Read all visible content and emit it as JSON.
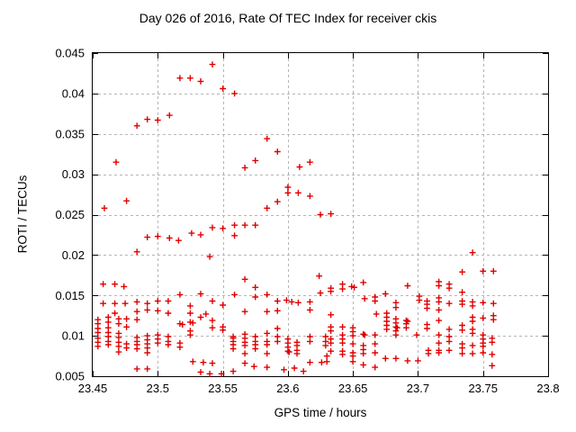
{
  "chart_data": {
    "type": "scatter",
    "title": "Day 026 of 2016, Rate Of TEC Index for receiver ckis",
    "xlabel": "GPS time / hours",
    "ylabel": "ROTI / TECUs",
    "xlim": [
      23.45,
      23.8
    ],
    "ylim": [
      0.005,
      0.045
    ],
    "xticks": [
      23.45,
      23.5,
      23.55,
      23.6,
      23.65,
      23.7,
      23.75,
      23.8
    ],
    "xtick_labels": [
      "23.45",
      "23.5",
      "23.55",
      "23.6",
      "23.65",
      "23.7",
      "23.75",
      "23.8"
    ],
    "yticks": [
      0.005,
      0.01,
      0.015,
      0.02,
      0.025,
      0.03,
      0.035,
      0.04,
      0.045
    ],
    "ytick_labels": [
      "0.005",
      "0.01",
      "0.015",
      "0.02",
      "0.025",
      "0.03",
      "0.035",
      "0.04",
      "0.045"
    ],
    "grid": true,
    "legend": "none",
    "marker": "plus",
    "marker_color": "#e00000",
    "grid_color": "#b5b5b5",
    "axis_color": "#000000",
    "points": [
      [
        23.459,
        0.0258
      ],
      [
        23.468,
        0.0315
      ],
      [
        23.476,
        0.0267
      ],
      [
        23.484,
        0.036
      ],
      [
        23.492,
        0.0368
      ],
      [
        23.5,
        0.0367
      ],
      [
        23.509,
        0.0373
      ],
      [
        23.517,
        0.0419
      ],
      [
        23.525,
        0.0419
      ],
      [
        23.533,
        0.0415
      ],
      [
        23.542,
        0.0436
      ],
      [
        23.55,
        0.0406
      ],
      [
        23.559,
        0.04
      ],
      [
        23.567,
        0.0308
      ],
      [
        23.575,
        0.0317
      ],
      [
        23.584,
        0.0344
      ],
      [
        23.592,
        0.0328
      ],
      [
        23.609,
        0.0309
      ],
      [
        23.617,
        0.0315
      ],
      [
        23.484,
        0.0204
      ],
      [
        23.492,
        0.0222
      ],
      [
        23.5,
        0.0223
      ],
      [
        23.509,
        0.0221
      ],
      [
        23.516,
        0.0218
      ],
      [
        23.526,
        0.0227
      ],
      [
        23.533,
        0.0225
      ],
      [
        23.54,
        0.0198
      ],
      [
        23.542,
        0.0234
      ],
      [
        23.55,
        0.0233
      ],
      [
        23.559,
        0.0237
      ],
      [
        23.567,
        0.0237
      ],
      [
        23.575,
        0.0237
      ],
      [
        23.559,
        0.0224
      ],
      [
        23.584,
        0.0258
      ],
      [
        23.592,
        0.0266
      ],
      [
        23.6,
        0.0284
      ],
      [
        23.6,
        0.0277
      ],
      [
        23.608,
        0.0277
      ],
      [
        23.617,
        0.0273
      ],
      [
        23.625,
        0.025
      ],
      [
        23.633,
        0.0251
      ],
      [
        23.742,
        0.0203
      ],
      [
        23.458,
        0.0164
      ],
      [
        23.467,
        0.0164
      ],
      [
        23.474,
        0.0161
      ],
      [
        23.458,
        0.014
      ],
      [
        23.467,
        0.014
      ],
      [
        23.475,
        0.014
      ],
      [
        23.484,
        0.0142
      ],
      [
        23.492,
        0.014
      ],
      [
        23.5,
        0.0143
      ],
      [
        23.508,
        0.0143
      ],
      [
        23.517,
        0.0151
      ],
      [
        23.525,
        0.0137
      ],
      [
        23.533,
        0.0152
      ],
      [
        23.537,
        0.0127
      ],
      [
        23.542,
        0.0143
      ],
      [
        23.55,
        0.0138
      ],
      [
        23.559,
        0.0151
      ],
      [
        23.567,
        0.017
      ],
      [
        23.567,
        0.013
      ],
      [
        23.575,
        0.016
      ],
      [
        23.575,
        0.0148
      ],
      [
        23.584,
        0.0151
      ],
      [
        23.584,
        0.013
      ],
      [
        23.592,
        0.0143
      ],
      [
        23.592,
        0.0131
      ],
      [
        23.599,
        0.0144
      ],
      [
        23.603,
        0.0142
      ],
      [
        23.608,
        0.0141
      ],
      [
        23.617,
        0.0142
      ],
      [
        23.617,
        0.0132
      ],
      [
        23.624,
        0.0174
      ],
      [
        23.625,
        0.0153
      ],
      [
        23.633,
        0.0159
      ],
      [
        23.633,
        0.0155
      ],
      [
        23.642,
        0.0164
      ],
      [
        23.642,
        0.0158
      ],
      [
        23.649,
        0.0161
      ],
      [
        23.651,
        0.016
      ],
      [
        23.658,
        0.0166
      ],
      [
        23.659,
        0.0146
      ],
      [
        23.667,
        0.0148
      ],
      [
        23.667,
        0.0143
      ],
      [
        23.675,
        0.0152
      ],
      [
        23.683,
        0.0141
      ],
      [
        23.683,
        0.0135
      ],
      [
        23.692,
        0.0162
      ],
      [
        23.701,
        0.0149
      ],
      [
        23.701,
        0.0144
      ],
      [
        23.707,
        0.0143
      ],
      [
        23.707,
        0.0139
      ],
      [
        23.707,
        0.0134
      ],
      [
        23.716,
        0.0167
      ],
      [
        23.716,
        0.0162
      ],
      [
        23.716,
        0.0147
      ],
      [
        23.716,
        0.0142
      ],
      [
        23.716,
        0.0132
      ],
      [
        23.724,
        0.0164
      ],
      [
        23.724,
        0.0159
      ],
      [
        23.724,
        0.014
      ],
      [
        23.734,
        0.0179
      ],
      [
        23.734,
        0.0154
      ],
      [
        23.734,
        0.0143
      ],
      [
        23.734,
        0.0139
      ],
      [
        23.742,
        0.0142
      ],
      [
        23.742,
        0.0137
      ],
      [
        23.75,
        0.018
      ],
      [
        23.758,
        0.018
      ],
      [
        23.75,
        0.0141
      ],
      [
        23.758,
        0.014
      ],
      [
        23.467,
        0.0128
      ],
      [
        23.484,
        0.013
      ],
      [
        23.492,
        0.0132
      ],
      [
        23.5,
        0.0131
      ],
      [
        23.508,
        0.0128
      ],
      [
        23.525,
        0.0128
      ],
      [
        23.533,
        0.0123
      ],
      [
        23.633,
        0.0126
      ],
      [
        23.668,
        0.0127
      ],
      [
        23.454,
        0.012
      ],
      [
        23.454,
        0.0115
      ],
      [
        23.454,
        0.0109
      ],
      [
        23.454,
        0.0104
      ],
      [
        23.462,
        0.0123
      ],
      [
        23.462,
        0.0117
      ],
      [
        23.462,
        0.011
      ],
      [
        23.462,
        0.0104
      ],
      [
        23.47,
        0.0121
      ],
      [
        23.47,
        0.0115
      ],
      [
        23.47,
        0.0103
      ],
      [
        23.476,
        0.0121
      ],
      [
        23.476,
        0.0111
      ],
      [
        23.484,
        0.012
      ],
      [
        23.517,
        0.0115
      ],
      [
        23.519,
        0.0114
      ],
      [
        23.525,
        0.0117
      ],
      [
        23.527,
        0.0116
      ],
      [
        23.525,
        0.0106
      ],
      [
        23.525,
        0.0101
      ],
      [
        23.542,
        0.0119
      ],
      [
        23.542,
        0.011
      ],
      [
        23.55,
        0.0111
      ],
      [
        23.55,
        0.0107
      ],
      [
        23.592,
        0.0109
      ],
      [
        23.633,
        0.0111
      ],
      [
        23.633,
        0.0106
      ],
      [
        23.642,
        0.0111
      ],
      [
        23.642,
        0.0101
      ],
      [
        23.65,
        0.011
      ],
      [
        23.65,
        0.0105
      ],
      [
        23.65,
        0.01
      ],
      [
        23.658,
        0.0102
      ],
      [
        23.659,
        0.0101
      ],
      [
        23.667,
        0.0101
      ],
      [
        23.676,
        0.0128
      ],
      [
        23.676,
        0.0123
      ],
      [
        23.676,
        0.0118
      ],
      [
        23.676,
        0.0113
      ],
      [
        23.676,
        0.0108
      ],
      [
        23.683,
        0.0121
      ],
      [
        23.683,
        0.0116
      ],
      [
        23.683,
        0.0111
      ],
      [
        23.684,
        0.011
      ],
      [
        23.683,
        0.0106
      ],
      [
        23.683,
        0.0101
      ],
      [
        23.691,
        0.0119
      ],
      [
        23.692,
        0.0118
      ],
      [
        23.691,
        0.0115
      ],
      [
        23.691,
        0.011
      ],
      [
        23.699,
        0.0101
      ],
      [
        23.707,
        0.0114
      ],
      [
        23.707,
        0.0109
      ],
      [
        23.716,
        0.0119
      ],
      [
        23.724,
        0.0108
      ],
      [
        23.734,
        0.0113
      ],
      [
        23.734,
        0.0107
      ],
      [
        23.742,
        0.0123
      ],
      [
        23.742,
        0.0118
      ],
      [
        23.742,
        0.0108
      ],
      [
        23.742,
        0.0103
      ],
      [
        23.75,
        0.0122
      ],
      [
        23.75,
        0.0101
      ],
      [
        23.758,
        0.0125
      ],
      [
        23.758,
        0.012
      ],
      [
        23.454,
        0.0097
      ],
      [
        23.454,
        0.0092
      ],
      [
        23.454,
        0.0087
      ],
      [
        23.462,
        0.0099
      ],
      [
        23.462,
        0.0093
      ],
      [
        23.462,
        0.0089
      ],
      [
        23.47,
        0.0098
      ],
      [
        23.47,
        0.0092
      ],
      [
        23.47,
        0.0087
      ],
      [
        23.47,
        0.008
      ],
      [
        23.476,
        0.009
      ],
      [
        23.476,
        0.0085
      ],
      [
        23.484,
        0.0098
      ],
      [
        23.484,
        0.0093
      ],
      [
        23.484,
        0.0089
      ],
      [
        23.484,
        0.0084
      ],
      [
        23.484,
        0.0059
      ],
      [
        23.492,
        0.01
      ],
      [
        23.492,
        0.0095
      ],
      [
        23.492,
        0.009
      ],
      [
        23.492,
        0.0085
      ],
      [
        23.492,
        0.0079
      ],
      [
        23.492,
        0.0059
      ],
      [
        23.5,
        0.0101
      ],
      [
        23.5,
        0.0096
      ],
      [
        23.5,
        0.0091
      ],
      [
        23.508,
        0.0099
      ],
      [
        23.508,
        0.0093
      ],
      [
        23.508,
        0.0089
      ],
      [
        23.517,
        0.0091
      ],
      [
        23.517,
        0.0086
      ],
      [
        23.527,
        0.0068
      ],
      [
        23.535,
        0.0067
      ],
      [
        23.533,
        0.0055
      ],
      [
        23.54,
        0.0053
      ],
      [
        23.549,
        0.0053
      ],
      [
        23.542,
        0.0066
      ],
      [
        23.558,
        0.0099
      ],
      [
        23.558,
        0.0097
      ],
      [
        23.558,
        0.0093
      ],
      [
        23.558,
        0.0089
      ],
      [
        23.558,
        0.0084
      ],
      [
        23.558,
        0.0056
      ],
      [
        23.567,
        0.0102
      ],
      [
        23.567,
        0.0097
      ],
      [
        23.567,
        0.0092
      ],
      [
        23.567,
        0.0088
      ],
      [
        23.567,
        0.0078
      ],
      [
        23.567,
        0.0066
      ],
      [
        23.575,
        0.0099
      ],
      [
        23.575,
        0.0093
      ],
      [
        23.575,
        0.0089
      ],
      [
        23.575,
        0.0084
      ],
      [
        23.574,
        0.0062
      ],
      [
        23.584,
        0.0103
      ],
      [
        23.584,
        0.0093
      ],
      [
        23.584,
        0.0089
      ],
      [
        23.584,
        0.0078
      ],
      [
        23.584,
        0.0061
      ],
      [
        23.592,
        0.0099
      ],
      [
        23.592,
        0.0093
      ],
      [
        23.597,
        0.0058
      ],
      [
        23.6,
        0.0096
      ],
      [
        23.6,
        0.0091
      ],
      [
        23.6,
        0.0086
      ],
      [
        23.6,
        0.0081
      ],
      [
        23.601,
        0.008
      ],
      [
        23.605,
        0.006
      ],
      [
        23.607,
        0.0092
      ],
      [
        23.607,
        0.0088
      ],
      [
        23.607,
        0.0082
      ],
      [
        23.607,
        0.0078
      ],
      [
        23.612,
        0.0056
      ],
      [
        23.617,
        0.0099
      ],
      [
        23.617,
        0.0093
      ],
      [
        23.617,
        0.0067
      ],
      [
        23.626,
        0.0067
      ],
      [
        23.629,
        0.0099
      ],
      [
        23.629,
        0.0093
      ],
      [
        23.629,
        0.0088
      ],
      [
        23.63,
        0.0075
      ],
      [
        23.63,
        0.0068
      ],
      [
        23.633,
        0.0096
      ],
      [
        23.633,
        0.0091
      ],
      [
        23.633,
        0.0081
      ],
      [
        23.642,
        0.0096
      ],
      [
        23.642,
        0.0091
      ],
      [
        23.642,
        0.0081
      ],
      [
        23.642,
        0.0077
      ],
      [
        23.65,
        0.009
      ],
      [
        23.65,
        0.0079
      ],
      [
        23.65,
        0.0075
      ],
      [
        23.65,
        0.0068
      ],
      [
        23.658,
        0.0088
      ],
      [
        23.658,
        0.0083
      ],
      [
        23.658,
        0.0078
      ],
      [
        23.658,
        0.0064
      ],
      [
        23.667,
        0.009
      ],
      [
        23.667,
        0.0079
      ],
      [
        23.667,
        0.0061
      ],
      [
        23.675,
        0.0072
      ],
      [
        23.683,
        0.0072
      ],
      [
        23.692,
        0.0069
      ],
      [
        23.7,
        0.0069
      ],
      [
        23.708,
        0.0082
      ],
      [
        23.708,
        0.0078
      ],
      [
        23.716,
        0.0101
      ],
      [
        23.716,
        0.0091
      ],
      [
        23.716,
        0.0082
      ],
      [
        23.716,
        0.0079
      ],
      [
        23.724,
        0.0099
      ],
      [
        23.724,
        0.0093
      ],
      [
        23.724,
        0.0082
      ],
      [
        23.734,
        0.009
      ],
      [
        23.734,
        0.0085
      ],
      [
        23.734,
        0.0078
      ],
      [
        23.742,
        0.0088
      ],
      [
        23.742,
        0.0078
      ],
      [
        23.75,
        0.0096
      ],
      [
        23.75,
        0.0091
      ],
      [
        23.75,
        0.0087
      ],
      [
        23.75,
        0.0079
      ],
      [
        23.757,
        0.0097
      ],
      [
        23.757,
        0.0092
      ],
      [
        23.757,
        0.0077
      ],
      [
        23.757,
        0.0063
      ]
    ]
  }
}
